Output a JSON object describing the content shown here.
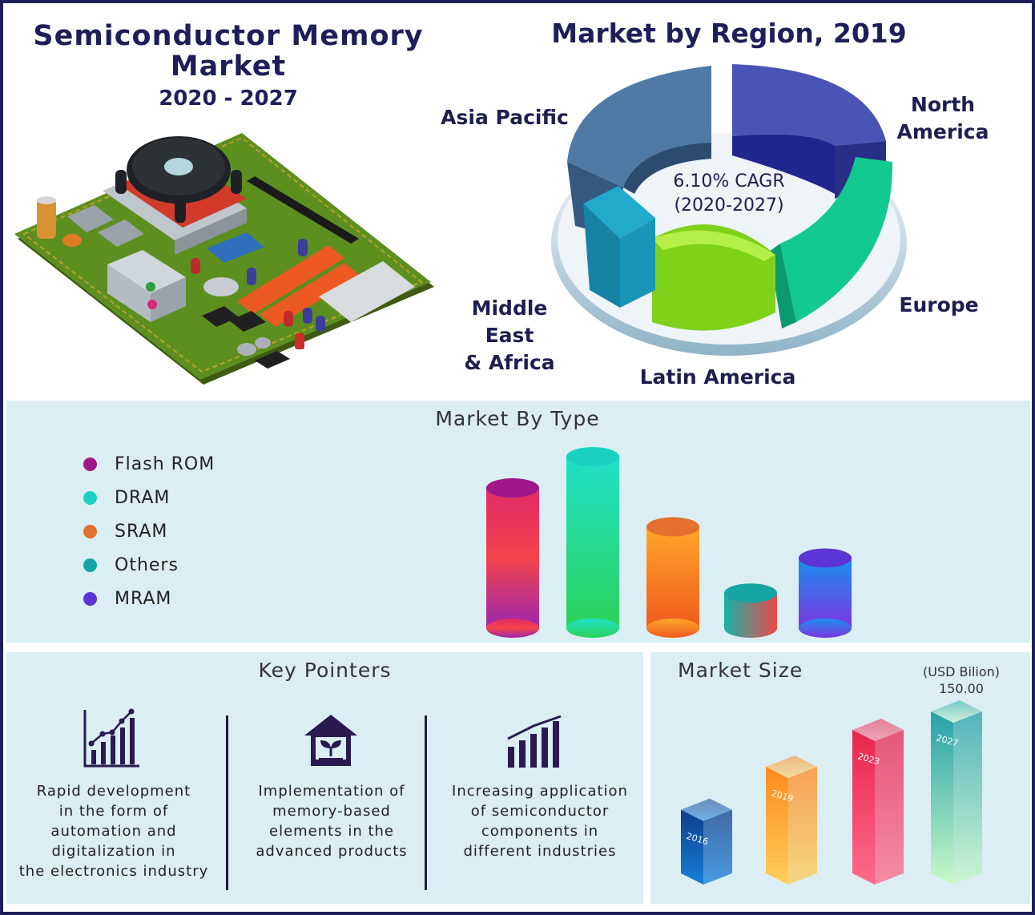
{
  "header": {
    "title_line1": "Semiconductor Memory",
    "title_line2": "Market",
    "years": "2020 - 2027"
  },
  "region": {
    "title": "Market by Region, 2019",
    "cagr_line1": "6.10% CAGR",
    "cagr_line2": "(2020-2027)",
    "labels": {
      "asia_pacific": "Asia Pacific",
      "north_america_1": "North",
      "north_america_2": "America",
      "europe": "Europe",
      "latin_america": "Latin America",
      "mea_1": "Middle East",
      "mea_2": "& Africa"
    }
  },
  "type_section": {
    "title": "Market By Type",
    "legend": [
      "Flash ROM",
      "DRAM",
      "SRAM",
      "Others",
      "MRAM"
    ]
  },
  "key_pointers": {
    "title": "Key Pointers",
    "items": [
      {
        "icon": "growth-chart-icon",
        "lines": [
          "Rapid development",
          "in the form of",
          "automation and",
          "digitalization in",
          "the electronics industry"
        ]
      },
      {
        "icon": "house-plant-icon",
        "lines": [
          "Implementation of",
          "memory-based",
          "elements in the",
          "advanced products"
        ]
      },
      {
        "icon": "bar-chart-icon",
        "lines": [
          "Increasing application",
          "of semiconductor",
          "components in",
          "different industries"
        ]
      }
    ]
  },
  "market_size": {
    "title": "Market Size",
    "unit": "(USD Bilion)",
    "value_label": "150.00"
  },
  "colors": {
    "navy": "#1e1e5a",
    "panel": "#dbeef4",
    "asia_pacific": "#3d6c9c",
    "north_america": "#2a2f9a",
    "europe": "#12c48e",
    "latin_america": "#7ed11a",
    "mea": "#1a8fb0"
  },
  "chart_data": [
    {
      "type": "pie",
      "title": "Market by Region, 2019",
      "categories": [
        "Asia Pacific",
        "North America",
        "Europe",
        "Latin America",
        "Middle East & Africa"
      ],
      "values": [
        27,
        25,
        22,
        16,
        10
      ]
    },
    {
      "type": "bar",
      "title": "Market By Type",
      "categories": [
        "Flash ROM",
        "DRAM",
        "SRAM",
        "Others",
        "MRAM"
      ],
      "values": [
        180,
        220,
        130,
        45,
        90
      ],
      "colors": [
        "#a0178a",
        "#1ad0c0",
        "#e3702c",
        "#16a5a5",
        "#5b35d5"
      ]
    },
    {
      "type": "bar",
      "title": "Market Size",
      "categories": [
        "2016",
        "2019",
        "2023",
        "2027"
      ],
      "values": [
        70,
        105,
        135,
        150
      ],
      "ylabel": "(USD Bilion)"
    }
  ]
}
